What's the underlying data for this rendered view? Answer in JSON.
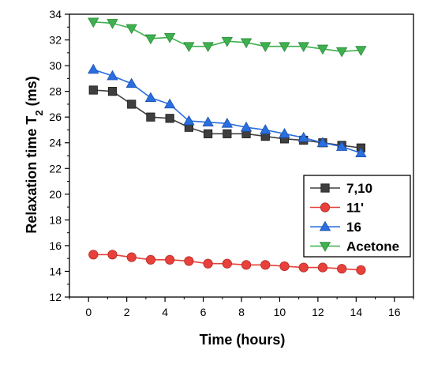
{
  "chart_data": {
    "type": "line",
    "xlabel": "Time (hours)",
    "ylabel": "Relaxation time T",
    "ylabel_subscript": "2",
    "ylabel_unit": "(ms)",
    "xlim": [
      -1,
      17
    ],
    "ylim": [
      12,
      34
    ],
    "xticks": [
      0,
      2,
      4,
      6,
      8,
      10,
      12,
      14,
      16
    ],
    "yticks": [
      12,
      14,
      16,
      18,
      20,
      22,
      24,
      26,
      28,
      30,
      32,
      34
    ],
    "grid": false,
    "legend_position": "bottom-right",
    "x": [
      0.25,
      1.25,
      2.25,
      3.25,
      4.25,
      5.25,
      6.25,
      7.25,
      8.25,
      9.25,
      10.25,
      11.25,
      12.25,
      13.25,
      14.25
    ],
    "series": [
      {
        "name": "7,10",
        "color": "#3f3f3f",
        "marker": "square",
        "values": [
          28.1,
          28.0,
          27.0,
          26.0,
          25.9,
          25.2,
          24.7,
          24.7,
          24.7,
          24.5,
          24.3,
          24.2,
          24.0,
          23.8,
          23.6
        ]
      },
      {
        "name": "11'",
        "color": "#e8403a",
        "marker": "circle",
        "values": [
          15.3,
          15.3,
          15.1,
          14.9,
          14.9,
          14.8,
          14.6,
          14.6,
          14.5,
          14.5,
          14.4,
          14.3,
          14.3,
          14.2,
          14.1
        ]
      },
      {
        "name": "16",
        "color": "#2a6fe0",
        "marker": "triangle-up",
        "values": [
          29.7,
          29.2,
          28.6,
          27.5,
          27.0,
          25.7,
          25.6,
          25.5,
          25.2,
          25.0,
          24.7,
          24.4,
          24.0,
          23.7,
          23.2
        ]
      },
      {
        "name": "Acetone",
        "color": "#3fb04f",
        "marker": "triangle-down",
        "values": [
          33.4,
          33.3,
          32.9,
          32.1,
          32.2,
          31.5,
          31.5,
          31.9,
          31.8,
          31.5,
          31.5,
          31.5,
          31.3,
          31.1,
          31.2
        ]
      }
    ]
  }
}
